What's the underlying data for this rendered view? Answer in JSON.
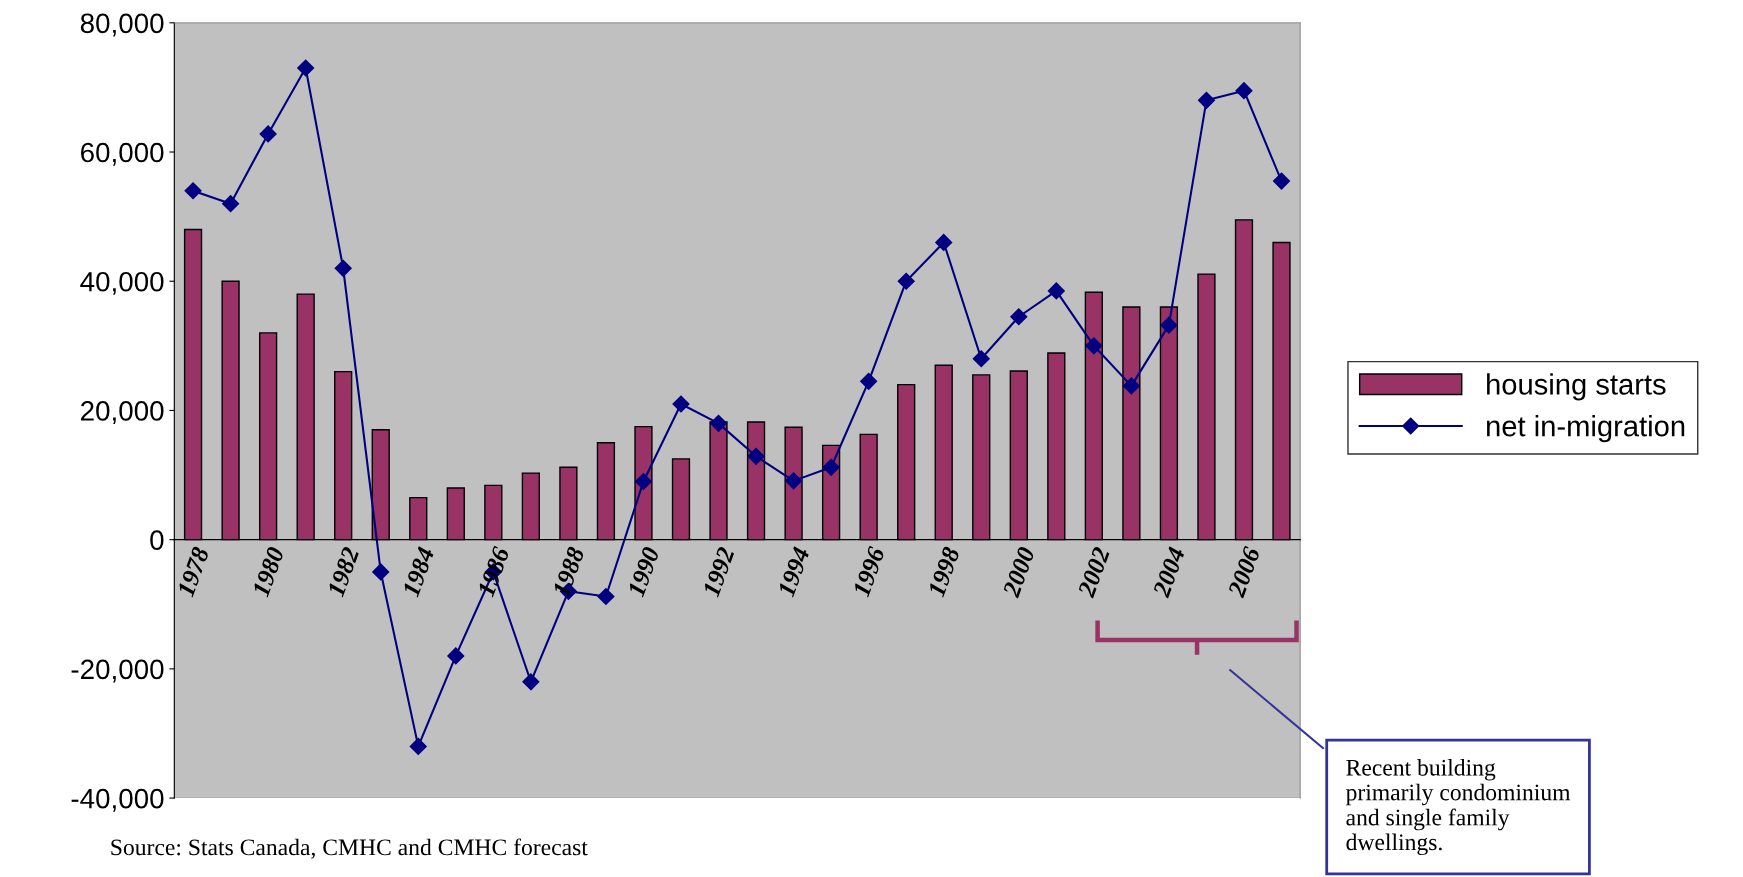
{
  "chart_data": {
    "type": "bar",
    "categories": [
      "1978",
      null,
      "1980",
      null,
      "1982",
      null,
      "1984",
      null,
      "1986",
      null,
      "1988",
      null,
      "1990",
      null,
      "1992",
      null,
      "1994",
      null,
      "1996",
      null,
      "1998",
      null,
      "2000",
      null,
      "2002",
      null,
      "2004",
      null,
      "2006",
      null
    ],
    "series": [
      {
        "name": "housing starts",
        "color": "#993366",
        "values": [
          48000,
          40000,
          32000,
          38000,
          26000,
          17000,
          6500,
          8000,
          8400,
          10300,
          11200,
          15000,
          17500,
          12500,
          18200,
          18200,
          17400,
          14600,
          16300,
          24000,
          27000,
          25500,
          26100,
          28900,
          38300,
          36000,
          36000,
          41100,
          49500,
          46000
        ]
      },
      {
        "name": "net in-migration",
        "type": "line",
        "color": "#000080",
        "marker": "diamond",
        "values": [
          54000,
          52000,
          62800,
          73000,
          42000,
          -5000,
          -32000,
          -18000,
          -5000,
          -22000,
          -8000,
          -8800,
          9000,
          21000,
          18000,
          12900,
          9100,
          11200,
          24500,
          40000,
          46000,
          28000,
          34500,
          38500,
          30000,
          23800,
          33200,
          68000,
          69500,
          55500
        ]
      }
    ],
    "ylim": [
      -40000,
      80000
    ],
    "yticks": [
      {
        "value": -40000,
        "label": "-40,000"
      },
      {
        "value": -20000,
        "label": "-20,000"
      },
      {
        "value": 0,
        "label": "0"
      },
      {
        "value": 20000,
        "label": "20,000"
      },
      {
        "value": 40000,
        "label": "40,000"
      },
      {
        "value": 60000,
        "label": "60,000"
      },
      {
        "value": 80000,
        "label": "80,000"
      }
    ],
    "grid": false,
    "legend": "right",
    "annotations": [
      "Source: Stats Canada, CMHC and CMHC forecast",
      "Recent building\nprimarily condominium\nand single family\ndwellings."
    ]
  }
}
